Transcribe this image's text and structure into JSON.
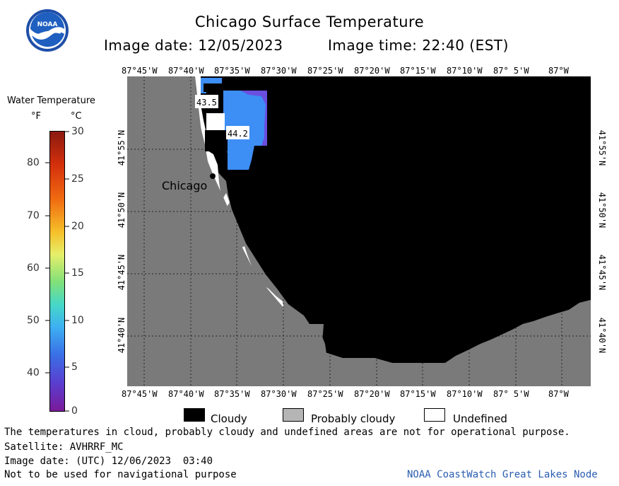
{
  "header": {
    "title": "Chicago Surface Temperature",
    "image_date_label": "Image date: 12/05/2023",
    "image_time_label": "Image time: 22:40 (EST)"
  },
  "logo": {
    "text": "NOAA"
  },
  "colorbar": {
    "title": "Water Temperature",
    "unit_f": "°F",
    "unit_c": "°C",
    "f_ticks": [
      "80",
      "70",
      "60",
      "50",
      "40"
    ],
    "c_ticks": [
      "30",
      "25",
      "20",
      "15",
      "10",
      "5",
      "0"
    ]
  },
  "map": {
    "lon_labels": [
      "87°45'W",
      "87°40'W",
      "87°35'W",
      "87°30'W",
      "87°25'W",
      "87°20'W",
      "87°15'W",
      "87°10'W",
      "87° 5'W",
      "87°W"
    ],
    "lat_labels": [
      "41°55'N",
      "41°50'N",
      "41°45'N",
      "41°40'N"
    ],
    "city_label": "Chicago",
    "temp_labels": [
      "43.5",
      "44.2"
    ],
    "colors": {
      "land": "#7a7a7a",
      "cloud": "#000000",
      "undefined": "#ffffff",
      "water_warm": "#3d8ef5",
      "water_cool": "#6a4fe0"
    }
  },
  "legend": {
    "cloudy": "Cloudy",
    "probably_cloudy": "Probably cloudy",
    "undefined": "Undefined",
    "colors": {
      "cloudy": "#000000",
      "probably_cloudy": "#b5b5b5",
      "undefined": "#ffffff"
    }
  },
  "footer": {
    "disclaimer": "The temperatures in cloud, probably cloudy and undefined areas are not for operational purpose.",
    "satellite": "Satellite: AVHRRF_MC",
    "utc_date": "Image date: (UTC) 12/06/2023  03:40",
    "nav_warning": "Not to be used for navigational purpose",
    "credit": "NOAA CoastWatch Great Lakes Node"
  }
}
